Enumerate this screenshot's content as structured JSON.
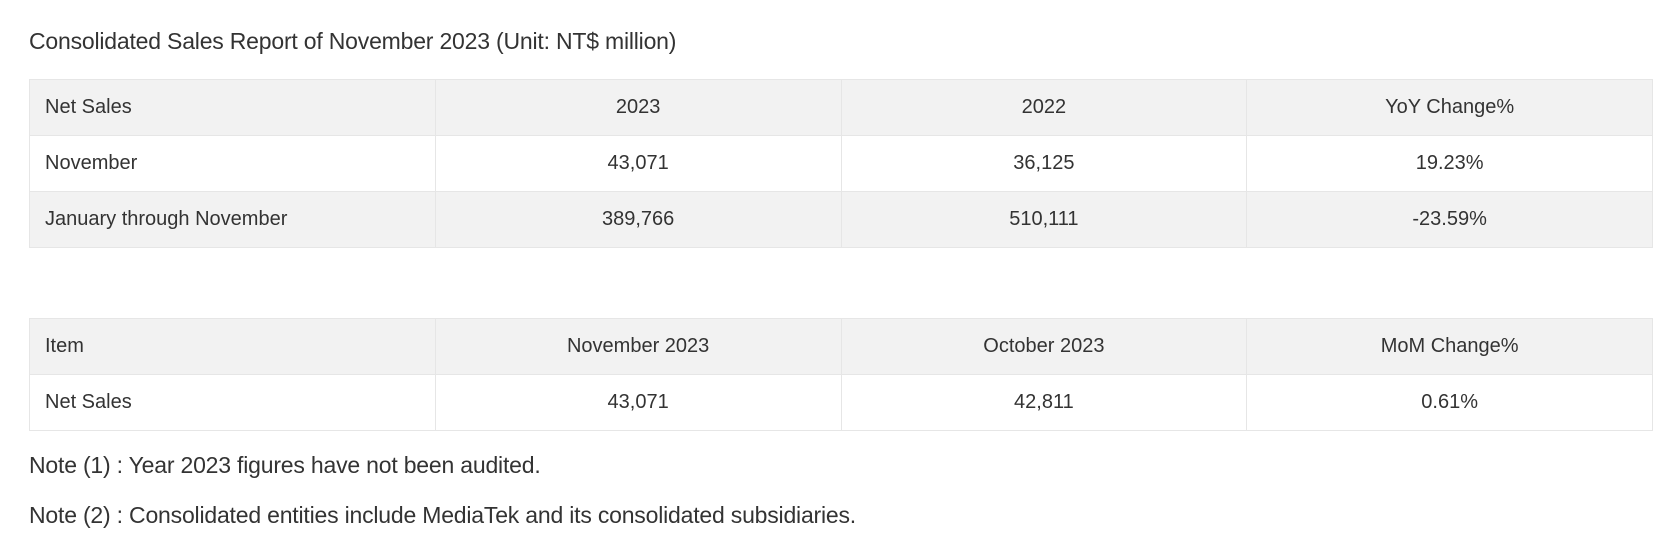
{
  "report": {
    "title": "Consolidated Sales Report of November 2023 (Unit: NT$ million)"
  },
  "net_sales_table": {
    "headers": [
      "Net Sales",
      "2023",
      "2022",
      "YoY Change%"
    ],
    "rows": [
      [
        "November",
        "43,071",
        "36,125",
        "19.23%"
      ],
      [
        "January through November",
        "389,766",
        "510,111",
        "-23.59%"
      ]
    ]
  },
  "mom_table": {
    "headers": [
      "Item",
      "November 2023",
      "October 2023",
      "MoM Change%"
    ],
    "rows": [
      [
        "Net Sales",
        "43,071",
        "42,811",
        "0.61%"
      ]
    ]
  },
  "notes": [
    "Note (1) : Year 2023 figures have not been audited.",
    "Note (2) : Consolidated entities include MediaTek and its consolidated subsidiaries."
  ],
  "colors": {
    "header_row_bg": "#f2f2f2",
    "border": "#e6e6e6",
    "text": "#333333"
  }
}
